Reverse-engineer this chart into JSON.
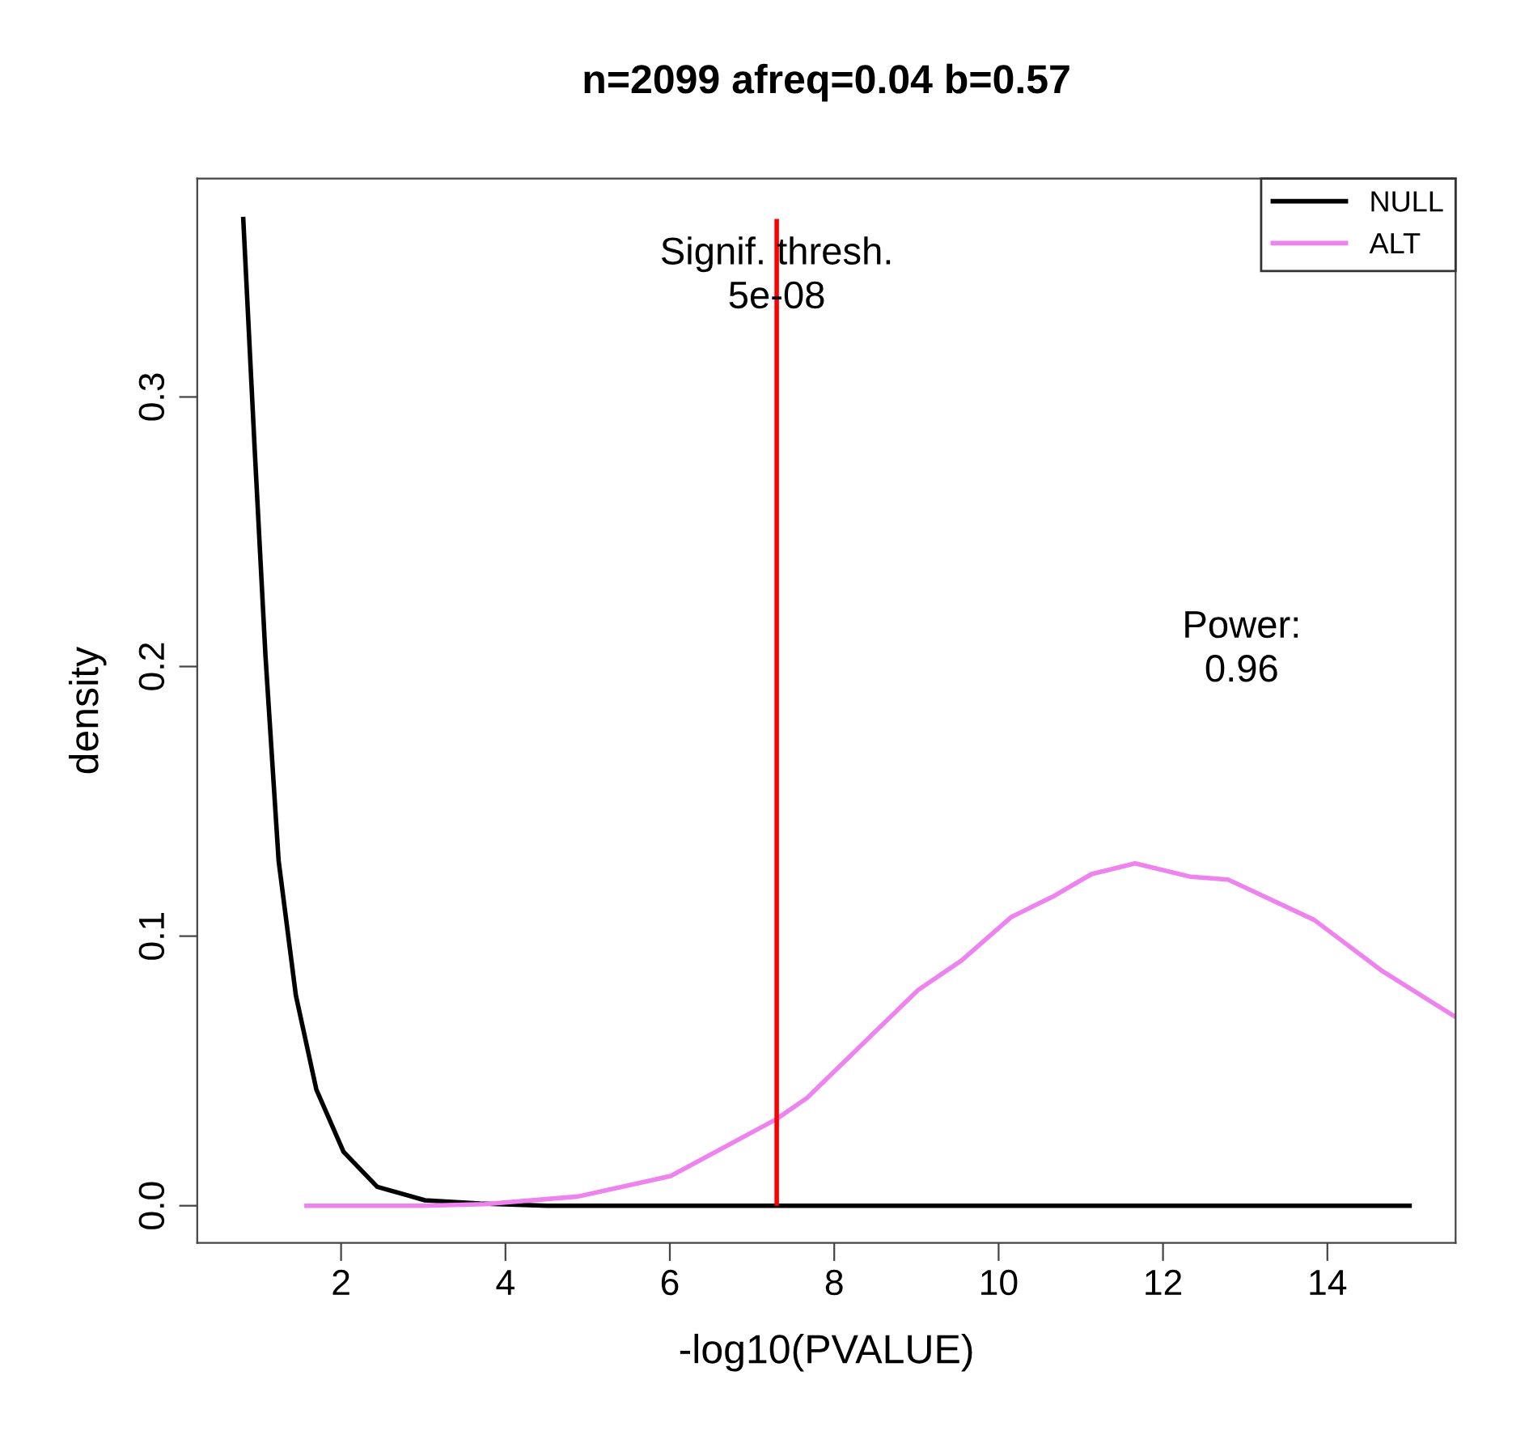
{
  "chart_data": {
    "type": "line",
    "title": "n=2099 afreq=0.04 b=0.57",
    "xlabel": "-log10(PVALUE)",
    "ylabel": "density",
    "series": [
      {
        "name": "NULL",
        "color": "#000000",
        "x": [
          0.81,
          0.95,
          1.08,
          1.24,
          1.45,
          1.7,
          2.03,
          2.44,
          3.02,
          3.69,
          4.5,
          15.0
        ],
        "values": [
          0.366,
          0.28,
          0.204,
          0.128,
          0.078,
          0.043,
          0.02,
          0.007,
          0.002,
          0.0008,
          0.0,
          0.0
        ]
      },
      {
        "name": "ALT",
        "color": "#ee82ee",
        "x": [
          1.58,
          3.0,
          3.75,
          4.88,
          6.01,
          7.29,
          7.67,
          9.02,
          9.55,
          10.15,
          10.68,
          11.13,
          11.66,
          12.34,
          12.79,
          13.84,
          14.67,
          15.56
        ],
        "values": [
          0.0,
          0.0,
          0.0006,
          0.0034,
          0.011,
          0.032,
          0.04,
          0.08,
          0.091,
          0.107,
          0.115,
          0.123,
          0.127,
          0.122,
          0.121,
          0.106,
          0.087,
          0.07
        ]
      }
    ],
    "ref_lines": [
      {
        "axis": "x",
        "value": 7.3,
        "color": "#ff0000"
      }
    ],
    "annotations": [
      {
        "text": "Signif. thresh.\n5e-08",
        "x": 7.3,
        "y": 0.33
      },
      "Power:\n0.96"
    ],
    "xlim": [
      0.25,
      15.56
    ],
    "ylim": [
      -0.0138,
      0.381
    ],
    "xticks": [
      2,
      4,
      6,
      8,
      10,
      12,
      14
    ],
    "yticks": [
      {
        "value": 0,
        "label": "0.0"
      },
      {
        "value": 0.1,
        "label": "0.1"
      },
      {
        "value": 0.2,
        "label": "0.2"
      },
      {
        "value": 0.3,
        "label": "0.3"
      }
    ],
    "grid": false,
    "legend": "top right"
  }
}
